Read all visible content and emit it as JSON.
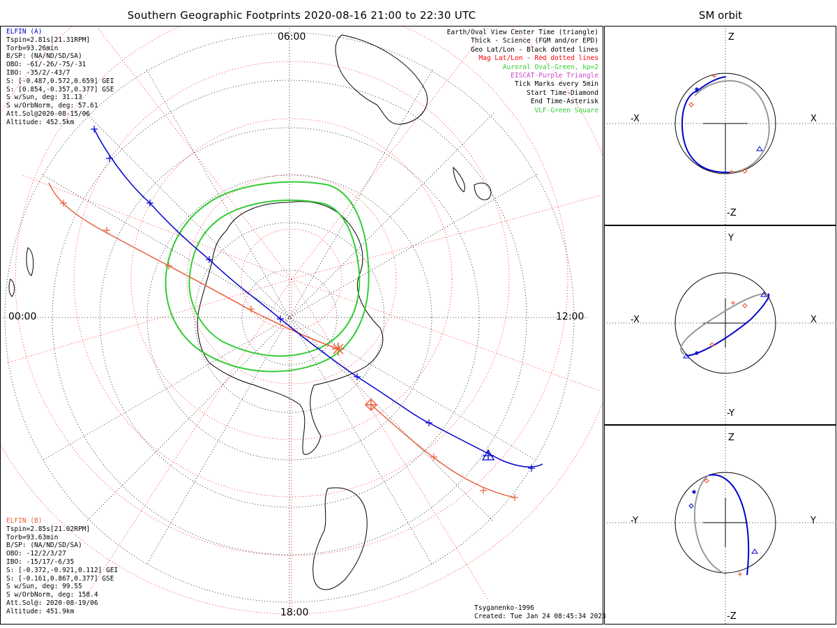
{
  "title": "Southern Geographic Footprints 2020-08-16 21:00 to 22:30 UTC",
  "sm_title": "SM orbit",
  "colors": {
    "elfin_a": "#0000cc",
    "elfin_b": "#e8603c",
    "geo_grid": "#000000",
    "mag_grid": "#ff0000",
    "auroral_oval": "#33cc33",
    "eiscat": "#cc44cc",
    "vlf": "#33cc33",
    "sm_gray": "#999999"
  },
  "time_labels": {
    "top": "06:00",
    "left": "00:00",
    "right": "12:00",
    "bottom": "18:00"
  },
  "legend": [
    {
      "text": "Earth/Oval View Center Time (triangle)",
      "color": "#000000"
    },
    {
      "text": "Thick - Science (FGM and/or EPD)",
      "color": "#000000"
    },
    {
      "text": "Geo Lat/Lon - Black dotted lines",
      "color": "#000000"
    },
    {
      "text": "Mag Lat/Lon - Red dotted lines",
      "color": "#ff0000"
    },
    {
      "text": "Auroral Oval-Green, kp=2",
      "color": "#33cc33"
    },
    {
      "text": "EISCAT-Purple Triangle",
      "color": "#cc44cc"
    },
    {
      "text": "Tick Marks every 5min",
      "color": "#000000"
    },
    {
      "text": "Start Time-Diamond",
      "color": "#000000"
    },
    {
      "text": "End Time-Asterisk",
      "color": "#000000"
    },
    {
      "text": "VLF-Green Square",
      "color": "#33cc33"
    }
  ],
  "elfin_a": {
    "name": "ELFIN (A)",
    "lines": [
      "Tspin=2.81s[21.31RPM]",
      "Torb=93.26min",
      "B/SP: (NA/ND/SD/SA)",
      "OBO: -61/-26/-75/-31",
      "IBO: -35/2/-43/7",
      "S: [-0.487,0.572,0.659] GEI",
      "S: [0.854,-0.357,0.377] GSE",
      "S w/Sun, deg: 31.13",
      "S w/OrbNorm, deg: 57.61",
      "Att.Sol@2020-08-15/06",
      "Altitude: 452.5km"
    ]
  },
  "elfin_b": {
    "name": "ELFIN (B)",
    "lines": [
      "Tspin=2.85s[21.02RPM]",
      "Torb=93.63min",
      "B/SP: (NA/ND/SD/SA)",
      "OBO: -12/2/3/27",
      "IBO: -15/17/-6/35",
      "S: [-0.372,-0.921,0.112] GEI",
      "S: [-0.161,0.867,0.377] GSE",
      "S w/Sun, deg: 99.55",
      "S w/OrbNorm, deg: 158.4",
      "Att.Sol@: 2020-08-19/06",
      "Altitude: 451.9km"
    ]
  },
  "credits": {
    "model": "Tsyganenko-1996",
    "created": "Created: Tue Jan 24 08:45:34 2023"
  },
  "sm_panels": [
    {
      "top": "Z",
      "bottom": "-Z",
      "left": "-X",
      "right": "X"
    },
    {
      "top": "Y",
      "bottom": "-Y",
      "left": "-X",
      "right": "X"
    },
    {
      "top": "Z",
      "bottom": "-Z",
      "left": "-Y",
      "right": "Y"
    }
  ]
}
